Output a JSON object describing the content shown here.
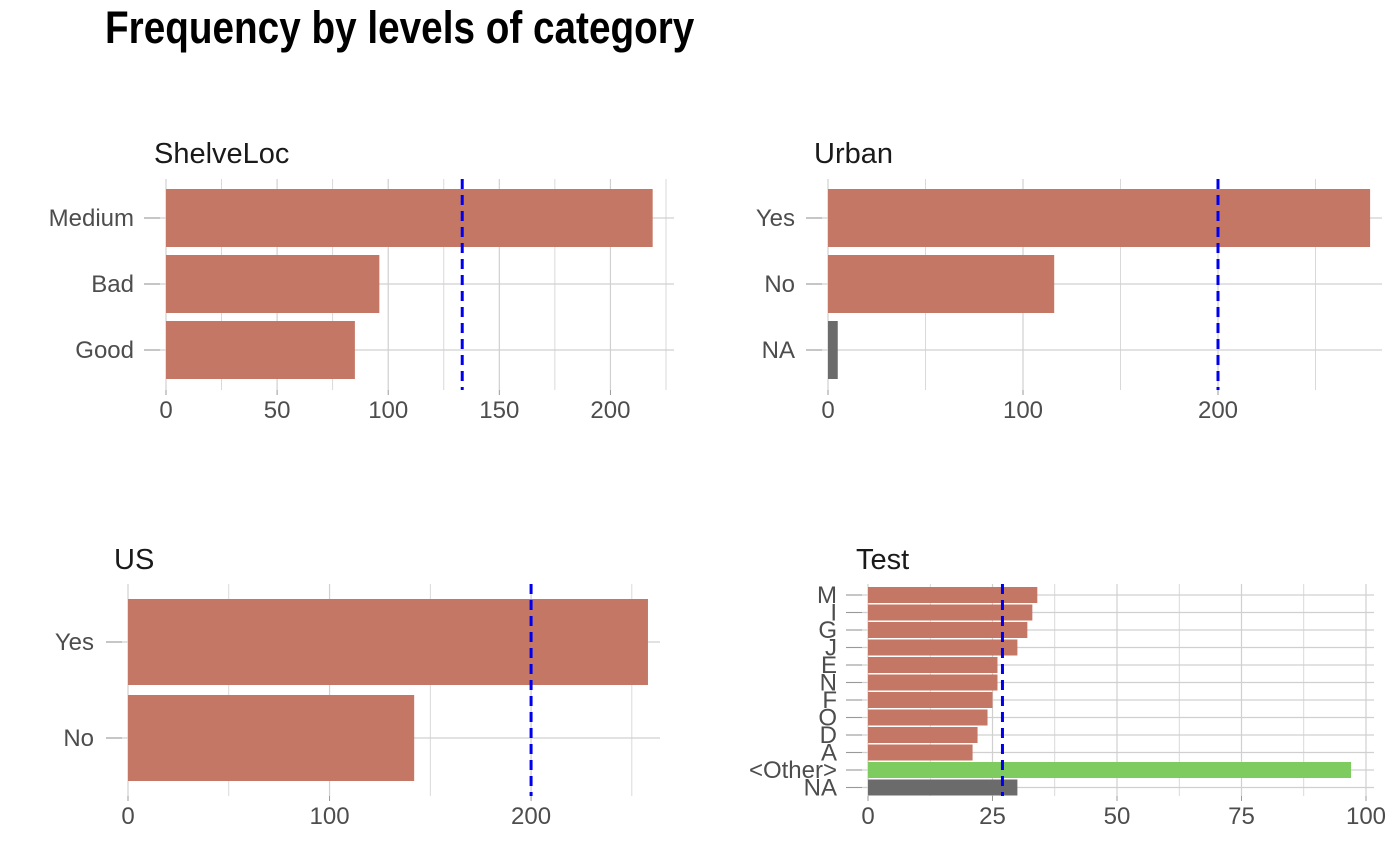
{
  "title": "Frequency by levels of category",
  "colors": {
    "bar": "#c47765",
    "na_bar": "#6b6b6b",
    "other_bar": "#7ecb60",
    "reference_line": "#0000ee",
    "grid": "#d0d0d0"
  },
  "chart_data": [
    {
      "type": "bar",
      "orientation": "horizontal",
      "title": "ShelveLoc",
      "categories": [
        "Medium",
        "Bad",
        "Good"
      ],
      "values": [
        219,
        96,
        85
      ],
      "xlim": [
        0,
        225
      ],
      "xticks": [
        0,
        50,
        100,
        150,
        200
      ],
      "reference_line": 133.3,
      "grid": true
    },
    {
      "type": "bar",
      "orientation": "horizontal",
      "title": "Urban",
      "categories": [
        "Yes",
        "No",
        "NA"
      ],
      "values": [
        278,
        116,
        5
      ],
      "xlim": [
        0,
        280
      ],
      "xticks": [
        0,
        100,
        200
      ],
      "reference_line": 200,
      "grid": true
    },
    {
      "type": "bar",
      "orientation": "horizontal",
      "title": "US",
      "categories": [
        "Yes",
        "No"
      ],
      "values": [
        258,
        142
      ],
      "xlim": [
        0,
        260
      ],
      "xticks": [
        0,
        100,
        200
      ],
      "reference_line": 200,
      "grid": true
    },
    {
      "type": "bar",
      "orientation": "horizontal",
      "title": "Test",
      "categories": [
        "M",
        "I",
        "G",
        "J",
        "E",
        "N",
        "F",
        "O",
        "D",
        "A",
        "<Other>",
        "NA"
      ],
      "values": [
        34,
        33,
        32,
        30,
        26,
        26,
        25,
        24,
        22,
        21,
        97,
        30
      ],
      "xlim": [
        0,
        100
      ],
      "xticks": [
        0,
        25,
        50,
        75,
        100
      ],
      "reference_line": 27,
      "grid": true
    }
  ]
}
